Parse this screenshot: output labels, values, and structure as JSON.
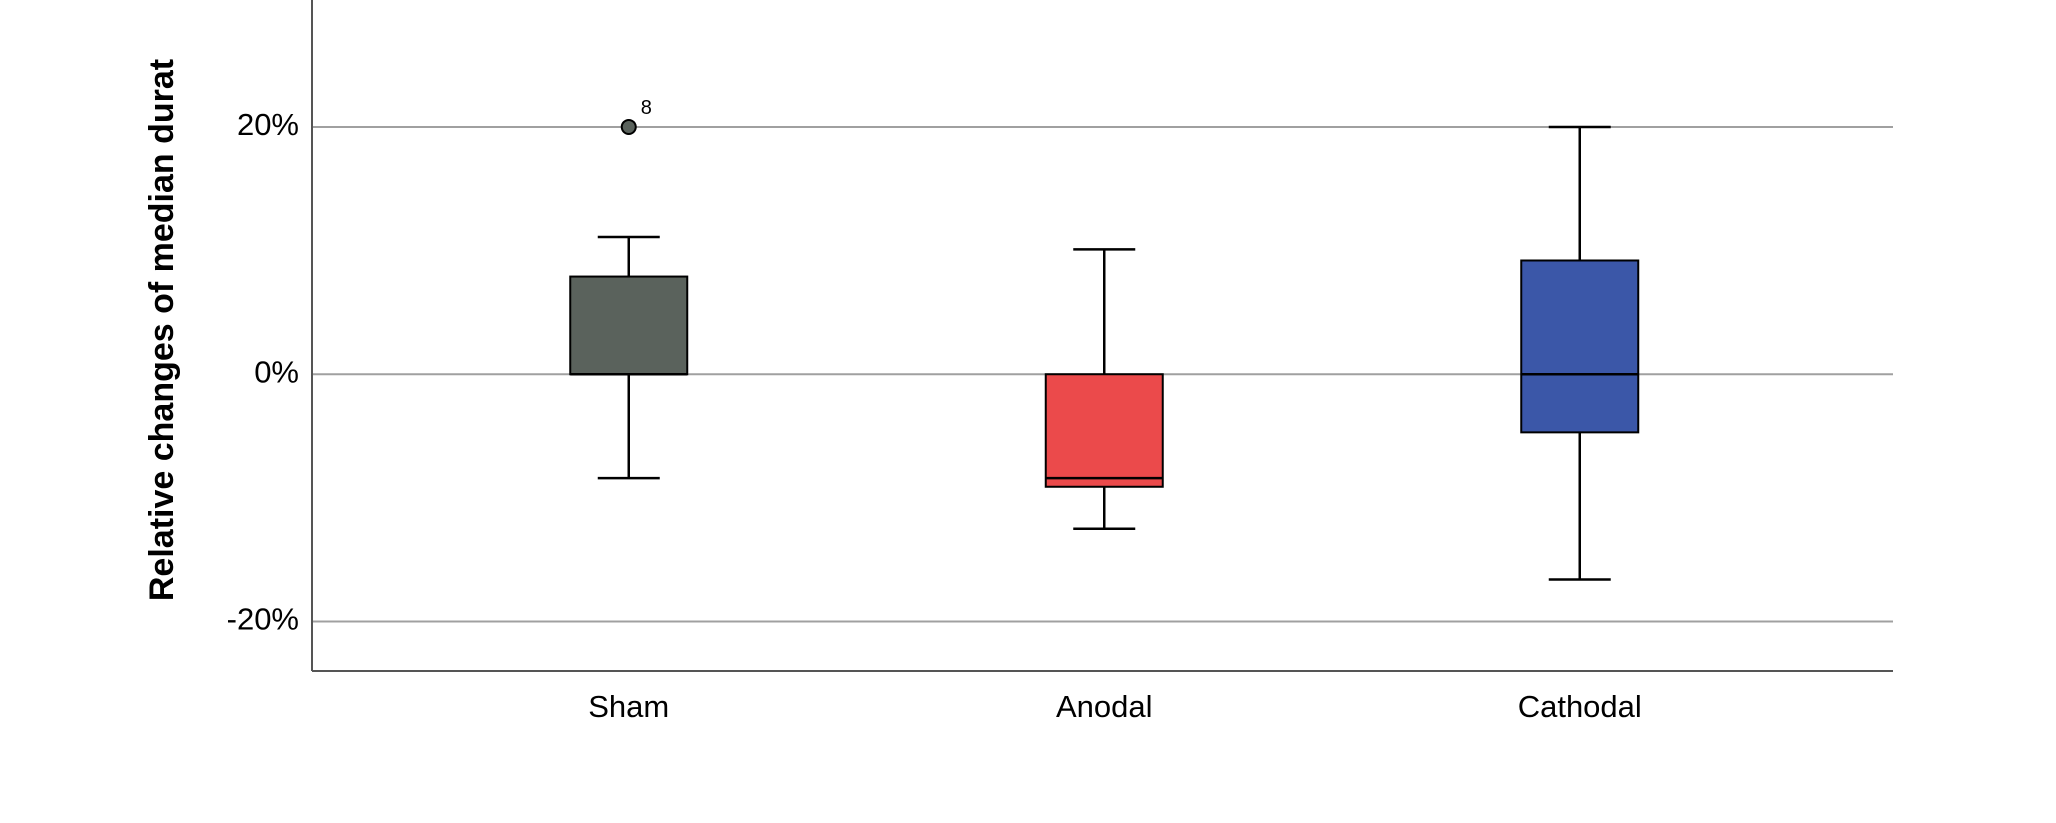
{
  "chart_data": {
    "type": "box",
    "y_label": "Relative changes of median durat",
    "categories": [
      "Sham",
      "Anodal",
      "Cathodal"
    ],
    "boxes": [
      {
        "color": "#5a625c",
        "whisker_low": -8.4,
        "q1": 0,
        "median": 0,
        "q3": 7.9,
        "whisker_high": 11.1,
        "outliers": [
          20
        ],
        "outlier_labels": [
          "8"
        ]
      },
      {
        "color": "#eb4a4b",
        "whisker_low": -12.5,
        "q1": -9.1,
        "median": -8.4,
        "q3": 0,
        "whisker_high": 10.1,
        "outliers": [],
        "outlier_labels": []
      },
      {
        "color": "#3b57a8",
        "whisker_low": -16.6,
        "q1": -4.7,
        "median": 0,
        "q3": 9.2,
        "whisker_high": 20,
        "outliers": [],
        "outlier_labels": []
      }
    ],
    "ylim": [
      -24,
      30
    ],
    "yticks": [
      {
        "value": -20,
        "label": "-20%"
      },
      {
        "value": 0,
        "label": "0%"
      },
      {
        "value": 20,
        "label": "20%"
      }
    ],
    "grid": true
  }
}
